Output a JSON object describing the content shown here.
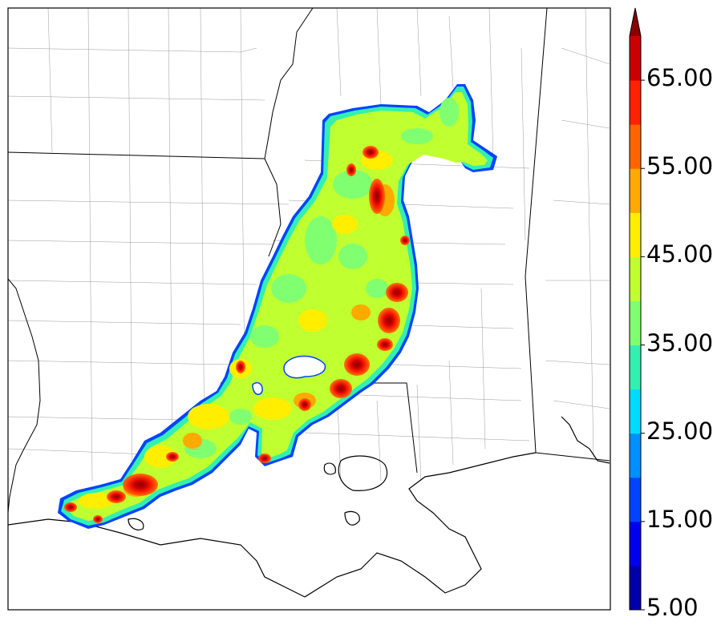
{
  "colorbar": {
    "labels": [
      "5.00",
      "15.00",
      "25.00",
      "35.00",
      "45.00",
      "55.00",
      "65.00"
    ],
    "levels": [
      5,
      10,
      15,
      20,
      25,
      30,
      35,
      40,
      45,
      50,
      55,
      60,
      65,
      70
    ],
    "colors": [
      "#0000aa",
      "#0000ee",
      "#0044ff",
      "#0090ff",
      "#00dcff",
      "#33f0b0",
      "#80ff70",
      "#c0ff30",
      "#ffee00",
      "#ffaa00",
      "#ff6600",
      "#ff2200",
      "#cc0000",
      "#880000"
    ],
    "extend": "max"
  },
  "field": {
    "variable": "reflectivity-like precipitation swath",
    "dominant_color": "#c0ff30",
    "core_colors": [
      "#ff6600",
      "#ff2200",
      "#cc0000",
      "#880000"
    ]
  }
}
